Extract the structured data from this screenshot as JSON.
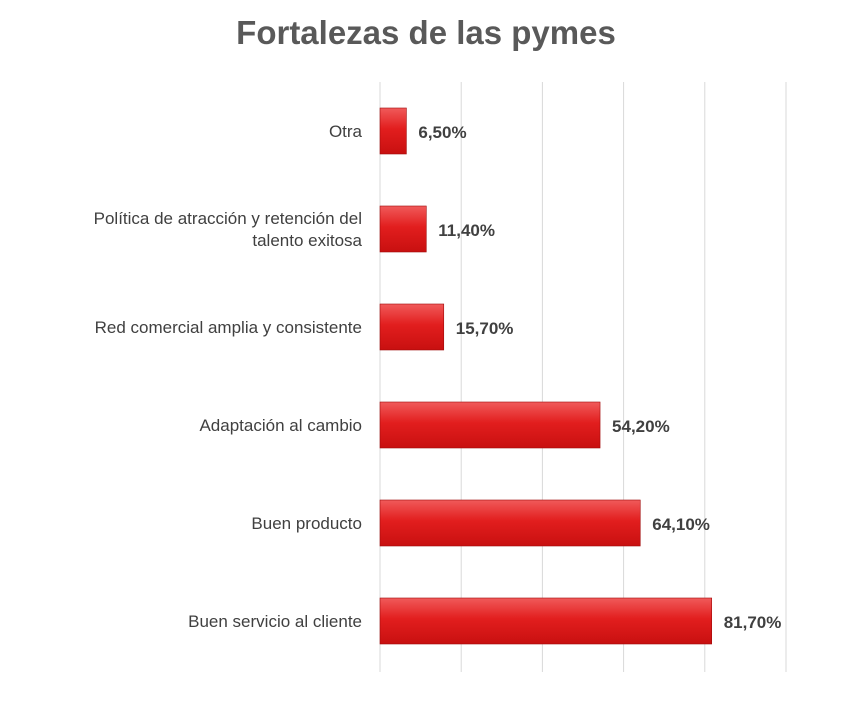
{
  "chart_data": {
    "type": "bar",
    "orientation": "horizontal",
    "title": "Fortalezas de las pymes",
    "categories": [
      "Otra",
      "Política de atracción y retención del talento exitosa",
      "Red comercial amplia y consistente",
      "Adaptación al cambio",
      "Buen producto",
      "Buen servicio al cliente"
    ],
    "category_lines": [
      [
        "Otra"
      ],
      [
        "Política de atracción y retención del",
        "talento exitosa"
      ],
      [
        "Red comercial amplia y consistente"
      ],
      [
        "Adaptación al cambio"
      ],
      [
        "Buen producto"
      ],
      [
        "Buen servicio al cliente"
      ]
    ],
    "values": [
      6.5,
      11.4,
      15.7,
      54.2,
      64.1,
      81.7
    ],
    "value_labels": [
      "6,50%",
      "11,40%",
      "15,70%",
      "54,20%",
      "64,10%",
      "81,70%"
    ],
    "xlim": [
      0,
      100
    ],
    "grid": true,
    "bar_color": "#e21e1e",
    "bar_color_light": "#f05a5a",
    "bar_color_dark": "#c81010",
    "grid_color": "#d9d9d9"
  }
}
